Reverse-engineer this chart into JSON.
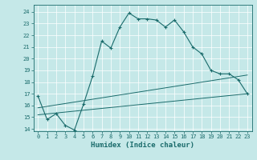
{
  "title": "",
  "xlabel": "Humidex (Indice chaleur)",
  "bg_color": "#c5e8e8",
  "line_color": "#1a6b6b",
  "xlim": [
    -0.5,
    23.5
  ],
  "ylim": [
    13.8,
    24.6
  ],
  "yticks": [
    14,
    15,
    16,
    17,
    18,
    19,
    20,
    21,
    22,
    23,
    24
  ],
  "xticks": [
    0,
    1,
    2,
    3,
    4,
    5,
    6,
    7,
    8,
    9,
    10,
    11,
    12,
    13,
    14,
    15,
    16,
    17,
    18,
    19,
    20,
    21,
    22,
    23
  ],
  "main_line_x": [
    0,
    1,
    2,
    3,
    4,
    5,
    6,
    7,
    8,
    9,
    10,
    11,
    12,
    13,
    14,
    15,
    16,
    17,
    18,
    19,
    20,
    21,
    22,
    23
  ],
  "main_line_y": [
    16.8,
    14.8,
    15.3,
    14.3,
    13.9,
    16.1,
    18.5,
    21.5,
    20.9,
    22.7,
    23.9,
    23.4,
    23.4,
    23.3,
    22.7,
    23.3,
    22.3,
    21.0,
    20.4,
    19.0,
    18.7,
    18.7,
    18.2,
    17.0
  ],
  "line2_x": [
    0,
    23
  ],
  "line2_y": [
    15.2,
    17.0
  ],
  "line3_x": [
    0,
    23
  ],
  "line3_y": [
    15.8,
    18.6
  ]
}
